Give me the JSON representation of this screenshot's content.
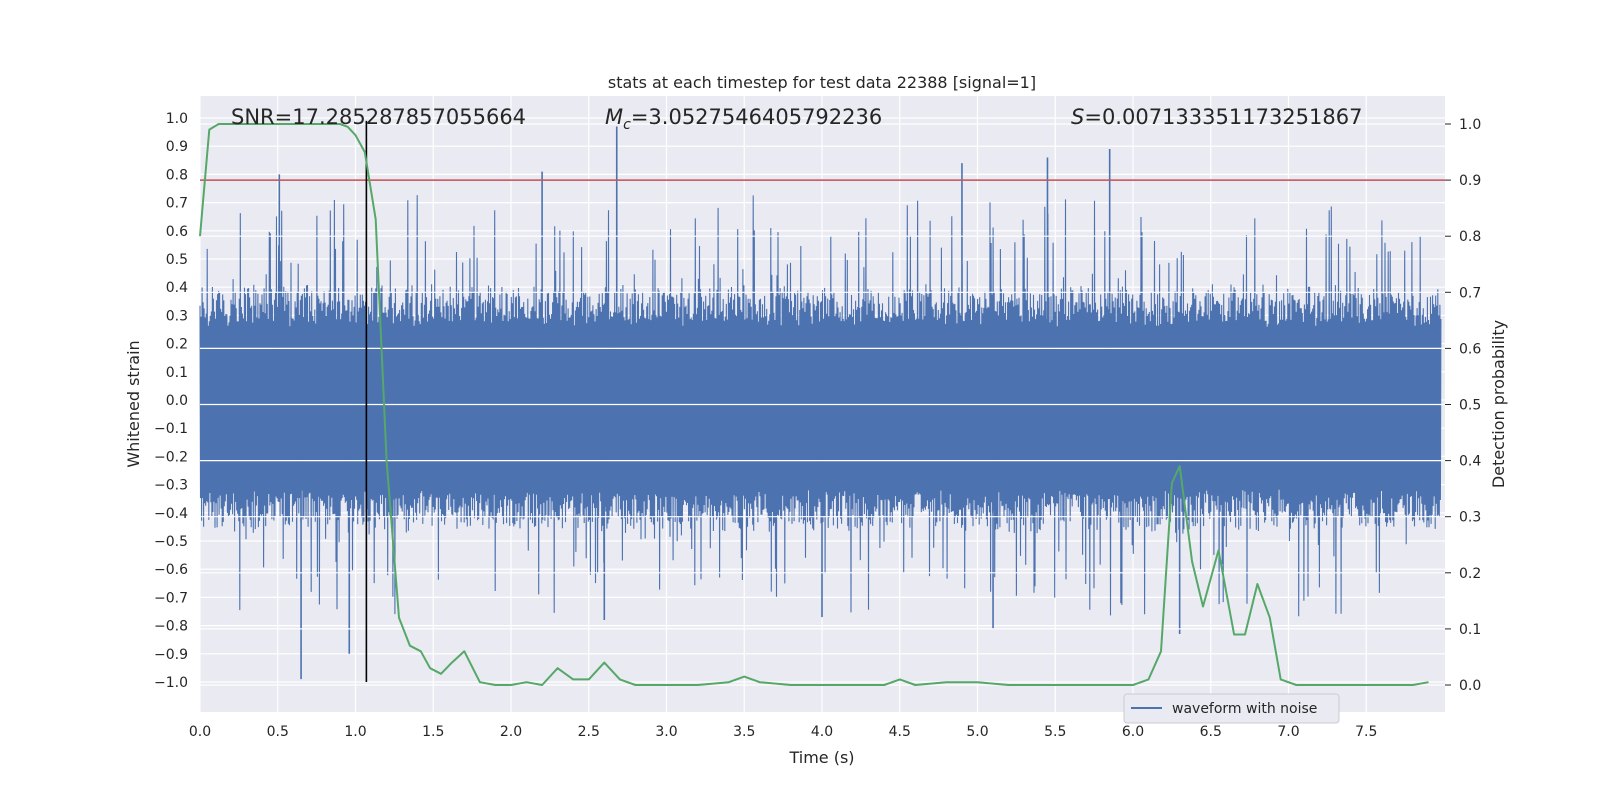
{
  "chart_data": {
    "type": "line",
    "title": "stats at each timestep for test data 22388 [signal=1]",
    "xlabel": "Time (s)",
    "ylabel_left": "Whitened strain",
    "ylabel_right": "Detection probability",
    "xlim": [
      0.0,
      8.0
    ],
    "ylim_left": [
      -1.1,
      1.05
    ],
    "ylim_right": [
      -0.05,
      1.04
    ],
    "x_ticks": [
      "0.0",
      "0.5",
      "1.0",
      "1.5",
      "2.0",
      "2.5",
      "3.0",
      "3.5",
      "4.0",
      "4.5",
      "5.0",
      "5.5",
      "6.0",
      "6.5",
      "7.0",
      "7.5"
    ],
    "y_left_ticks": [
      "1.0",
      "0.9",
      "0.8",
      "0.7",
      "0.6",
      "0.5",
      "0.4",
      "0.3",
      "0.2",
      "0.1",
      "0.0",
      "−0.1",
      "−0.2",
      "−0.3",
      "−0.4",
      "−0.5",
      "−0.6",
      "−0.7",
      "−0.8",
      "−0.9",
      "−1.0"
    ],
    "y_right_ticks": [
      "1.0",
      "0.9",
      "0.8",
      "0.7",
      "0.6",
      "0.5",
      "0.4",
      "0.3",
      "0.2",
      "0.1",
      "0.0"
    ],
    "grid": true,
    "legend_position": "lower-right",
    "annotations": {
      "snr": "SNR=17.285287857055664",
      "mc_symbol": "M",
      "mc_sub": "c",
      "mc_value": "=3.0527546405792236",
      "s_symbol": "S",
      "s_value": "=0.007133351173251867"
    },
    "series": [
      {
        "name": "waveform with noise",
        "axis": "left",
        "color": "#4c72b0",
        "style": "noise",
        "core_amplitude": 0.36,
        "peaks": [
          {
            "x": 0.51,
            "y": 0.8
          },
          {
            "x": 2.2,
            "y": 0.81
          },
          {
            "x": 2.68,
            "y": 0.97
          },
          {
            "x": 4.9,
            "y": 0.84
          },
          {
            "x": 5.45,
            "y": 0.86
          },
          {
            "x": 5.85,
            "y": 0.89
          },
          {
            "x": 0.65,
            "y": -0.99
          },
          {
            "x": 0.96,
            "y": -0.9
          },
          {
            "x": 6.3,
            "y": -0.83
          },
          {
            "x": 2.6,
            "y": -0.78
          },
          {
            "x": 5.1,
            "y": -0.81
          },
          {
            "x": 4.0,
            "y": -0.77
          }
        ]
      },
      {
        "name": "",
        "axis": "right",
        "color": "#55a868",
        "style": "line",
        "x": [
          0.0,
          0.06,
          0.12,
          0.2,
          0.3,
          0.5,
          0.7,
          0.9,
          0.95,
          1.0,
          1.06,
          1.13,
          1.2,
          1.28,
          1.35,
          1.42,
          1.48,
          1.55,
          1.62,
          1.7,
          1.8,
          1.9,
          2.0,
          2.1,
          2.2,
          2.3,
          2.4,
          2.5,
          2.6,
          2.7,
          2.8,
          3.0,
          3.2,
          3.4,
          3.5,
          3.6,
          3.8,
          4.0,
          4.2,
          4.4,
          4.5,
          4.6,
          4.8,
          5.0,
          5.2,
          5.4,
          5.6,
          5.8,
          6.0,
          6.1,
          6.18,
          6.25,
          6.3,
          6.38,
          6.45,
          6.55,
          6.65,
          6.72,
          6.8,
          6.88,
          6.95,
          7.05,
          7.3,
          7.6,
          7.8,
          7.9
        ],
        "y": [
          0.8,
          0.99,
          1.0,
          1.0,
          1.0,
          1.0,
          1.0,
          1.0,
          0.995,
          0.98,
          0.95,
          0.83,
          0.4,
          0.12,
          0.07,
          0.06,
          0.03,
          0.02,
          0.04,
          0.06,
          0.005,
          0.0,
          0.0,
          0.005,
          0.0,
          0.03,
          0.01,
          0.01,
          0.04,
          0.01,
          0.0,
          0.0,
          0.0,
          0.005,
          0.015,
          0.005,
          0.0,
          0.0,
          0.0,
          0.0,
          0.01,
          0.0,
          0.005,
          0.005,
          0.0,
          0.0,
          0.0,
          0.0,
          0.0,
          0.01,
          0.06,
          0.36,
          0.39,
          0.22,
          0.14,
          0.24,
          0.09,
          0.09,
          0.18,
          0.12,
          0.01,
          0.0,
          0.0,
          0.0,
          0.0,
          0.005
        ]
      }
    ],
    "reference_lines": [
      {
        "kind": "horizontal",
        "axis": "right",
        "value": 0.9,
        "color": "#c44e52"
      },
      {
        "kind": "vertical",
        "x": 1.07,
        "y_from": -1.0,
        "y_to": 0.99,
        "color": "#000000"
      }
    ]
  }
}
